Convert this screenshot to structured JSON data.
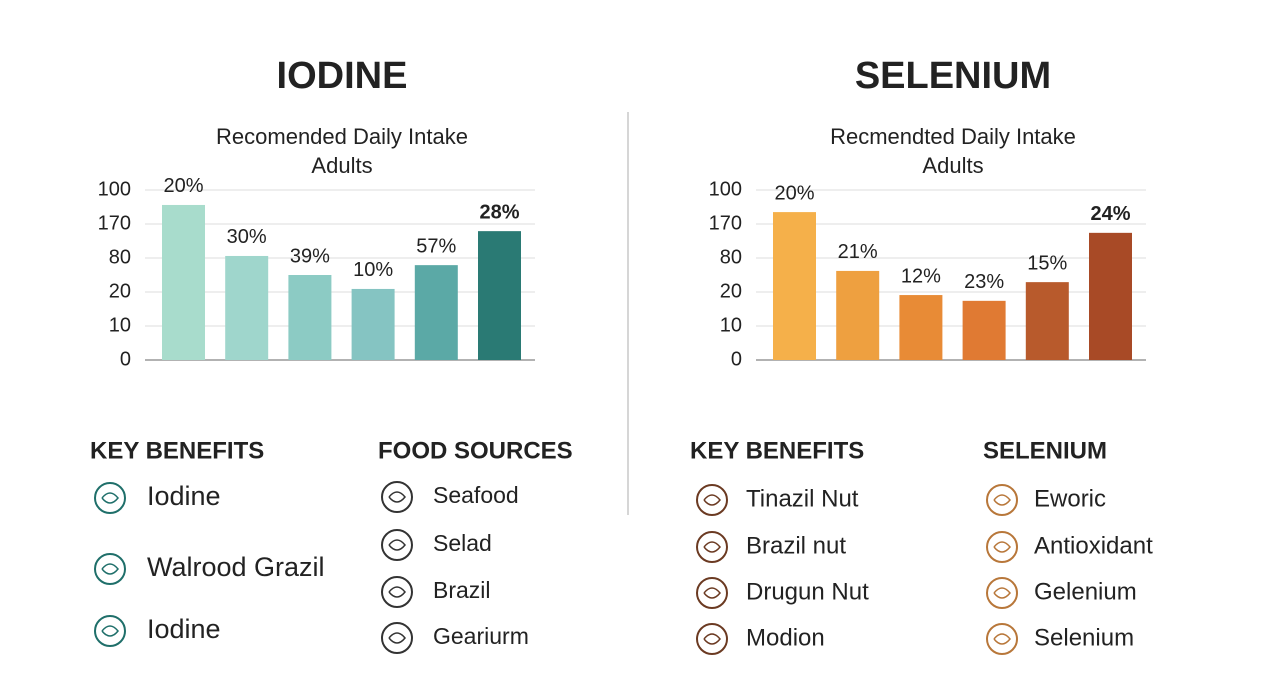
{
  "chart_data": [
    {
      "type": "bar",
      "title": "IODINE",
      "subtitle": [
        "Recomended Daily Intake",
        "Adults"
      ],
      "values": [
        4.56,
        3.06,
        2.5,
        2.09,
        2.79,
        3.79
      ],
      "value_labels": [
        "20%",
        "30%",
        "39%",
        "10%",
        "57%",
        "28%"
      ],
      "colors": [
        "#a8dccc",
        "#9fd6cc",
        "#8ccbc4",
        "#85c4c2",
        "#5ba9a6",
        "#2a7a74"
      ],
      "ylim": [
        0,
        5.2
      ],
      "yticks": [
        {
          "value": 0,
          "label": "0"
        },
        {
          "value": 1,
          "label": "10"
        },
        {
          "value": 2,
          "label": "20"
        },
        {
          "value": 3,
          "label": "80"
        },
        {
          "value": 4,
          "label": "170"
        },
        {
          "value": 5,
          "label": "100"
        }
      ],
      "grid": true
    },
    {
      "type": "bar",
      "title": "SELENIUM",
      "subtitle": [
        "Recmendted Daily Intake",
        "Adults"
      ],
      "values": [
        4.35,
        2.62,
        1.91,
        1.74,
        2.29,
        3.74
      ],
      "value_labels": [
        "20%",
        "21%",
        "12%",
        "23%",
        "15%",
        "24%"
      ],
      "colors": [
        "#f5b04a",
        "#eea040",
        "#e88b36",
        "#e07a33",
        "#b85a2c",
        "#a84a26"
      ],
      "ylim": [
        0,
        5.2
      ],
      "yticks": [
        {
          "value": 0,
          "label": "0"
        },
        {
          "value": 1,
          "label": "10"
        },
        {
          "value": 2,
          "label": "20"
        },
        {
          "value": 3,
          "label": "80"
        },
        {
          "value": 4,
          "label": "170"
        },
        {
          "value": 5,
          "label": "100"
        }
      ],
      "grid": true
    }
  ],
  "panels": [
    {
      "benefits_title": "KEY BENEFITS",
      "benefits": [
        "Iodine",
        "Walrood Grazil",
        "Iodine"
      ],
      "sources_title": "FOOD SOURCES",
      "sources": [
        "Seafood",
        "Selad",
        "Brazil",
        "Geariurm"
      ]
    },
    {
      "benefits_title": "KEY BENEFITS",
      "benefits": [
        "Tinazil Nut",
        "Brazil nut",
        "Drugun Nut",
        "Modion"
      ],
      "sources_title": "SELENIUM",
      "sources": [
        "Eworic",
        "Antioxidant",
        "Gelenium",
        "Selenium"
      ]
    }
  ]
}
